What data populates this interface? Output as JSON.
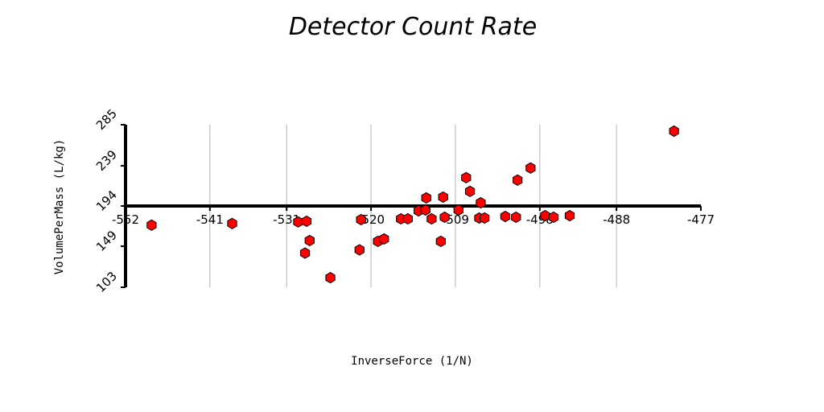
{
  "colors": {
    "marker_fill": "#ff0000",
    "marker_stroke": "#000000",
    "grid": "#b4b4b4",
    "axis": "#000000"
  },
  "chart_data": {
    "type": "scatter",
    "title": "Detector Count Rate",
    "xlabel": "InverseForce (1/N)",
    "ylabel": "VolumePerMass (L/kg)",
    "xlim": [
      -552,
      -477
    ],
    "ylim": [
      103,
      285
    ],
    "x_ticks": [
      -552,
      -541,
      -531,
      -520,
      -509,
      -498,
      -488,
      -477
    ],
    "x_tick_labels": [
      "-552",
      "-541",
      "-531",
      "-520",
      "-509",
      "-498",
      "-488",
      "-477"
    ],
    "y_ticks": [
      103,
      149,
      194,
      239,
      285
    ],
    "y_tick_labels": [
      "103",
      "149",
      "194",
      "239",
      "285"
    ],
    "x_axis_at_y": 194,
    "grid": "vertical",
    "legend": "none",
    "marker": "hexagon",
    "series": [
      {
        "points": [
          [
            -548.6,
            172.6
          ],
          [
            -538.1,
            174.4
          ],
          [
            -529.5,
            176.2
          ],
          [
            -528.4,
            176.9
          ],
          [
            -528.6,
            141.3
          ],
          [
            -528.0,
            155.3
          ],
          [
            -525.3,
            113.7
          ],
          [
            -521.5,
            144.9
          ],
          [
            -521.3,
            178.7
          ],
          [
            -519.1,
            154.4
          ],
          [
            -518.3,
            157.1
          ],
          [
            -516.1,
            179.6
          ],
          [
            -515.2,
            179.6
          ],
          [
            -513.8,
            188.6
          ],
          [
            -512.8,
            203.1
          ],
          [
            -512.9,
            189.5
          ],
          [
            -512.1,
            179.6
          ],
          [
            -510.6,
            204.0
          ],
          [
            -510.9,
            154.4
          ],
          [
            -510.4,
            181.4
          ],
          [
            -508.6,
            189.5
          ],
          [
            -507.6,
            225.7
          ],
          [
            -507.1,
            210.4
          ],
          [
            -505.7,
            197.6
          ],
          [
            -505.9,
            180.5
          ],
          [
            -505.2,
            180.5
          ],
          [
            -502.5,
            182.3
          ],
          [
            -501.1,
            181.4
          ],
          [
            -500.9,
            223.0
          ],
          [
            -499.2,
            236.5
          ],
          [
            -497.3,
            183.2
          ],
          [
            -496.2,
            181.4
          ],
          [
            -494.1,
            183.2
          ],
          [
            -480.5,
            277.8
          ]
        ]
      }
    ]
  }
}
